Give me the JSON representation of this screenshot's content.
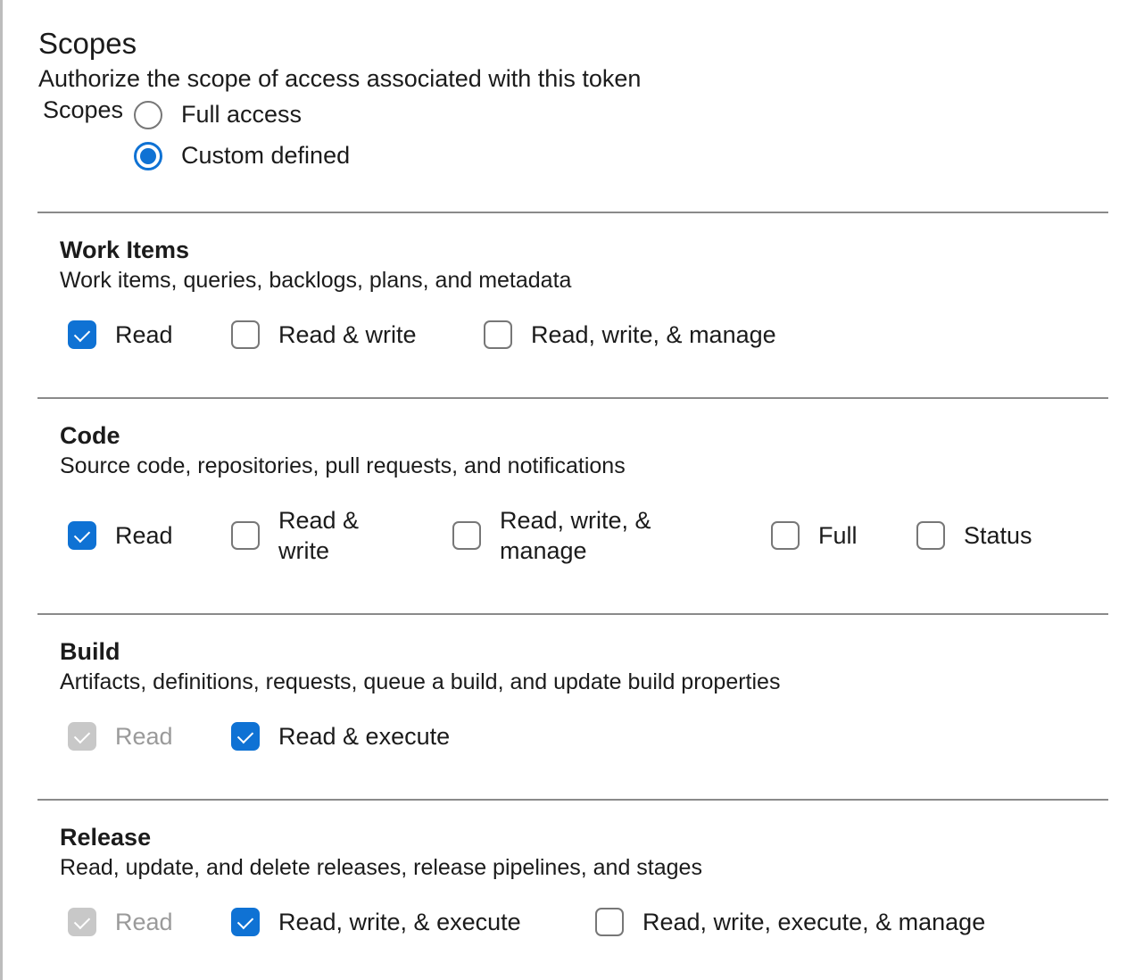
{
  "header": {
    "title": "Scopes",
    "subtitle": "Authorize the scope of access associated with this token",
    "scopes_label": "Scopes"
  },
  "access": {
    "options": [
      {
        "label": "Full access",
        "selected": false
      },
      {
        "label": "Custom defined",
        "selected": true
      }
    ]
  },
  "accent_color": "#0f72d4",
  "sections": [
    {
      "title": "Work Items",
      "description": "Work items, queries, backlogs, plans, and metadata",
      "options": [
        {
          "label": "Read",
          "state": "checked"
        },
        {
          "label": "Read & write",
          "state": "unchecked"
        },
        {
          "label": "Read, write, & manage",
          "state": "unchecked"
        }
      ]
    },
    {
      "title": "Code",
      "description": "Source code, repositories, pull requests, and notifications",
      "options": [
        {
          "label": "Read",
          "state": "checked"
        },
        {
          "label": "Read & write",
          "state": "unchecked"
        },
        {
          "label": "Read, write, & manage",
          "state": "unchecked"
        },
        {
          "label": "Full",
          "state": "unchecked"
        },
        {
          "label": "Status",
          "state": "unchecked"
        }
      ]
    },
    {
      "title": "Build",
      "description": "Artifacts, definitions, requests, queue a build, and update build properties",
      "options": [
        {
          "label": "Read",
          "state": "checked-disabled"
        },
        {
          "label": "Read & execute",
          "state": "checked"
        }
      ]
    },
    {
      "title": "Release",
      "description": "Read, update, and delete releases, release pipelines, and stages",
      "options": [
        {
          "label": "Read",
          "state": "checked-disabled"
        },
        {
          "label": "Read, write, & execute",
          "state": "checked"
        },
        {
          "label": "Read, write, execute, & manage",
          "state": "unchecked"
        }
      ]
    }
  ]
}
